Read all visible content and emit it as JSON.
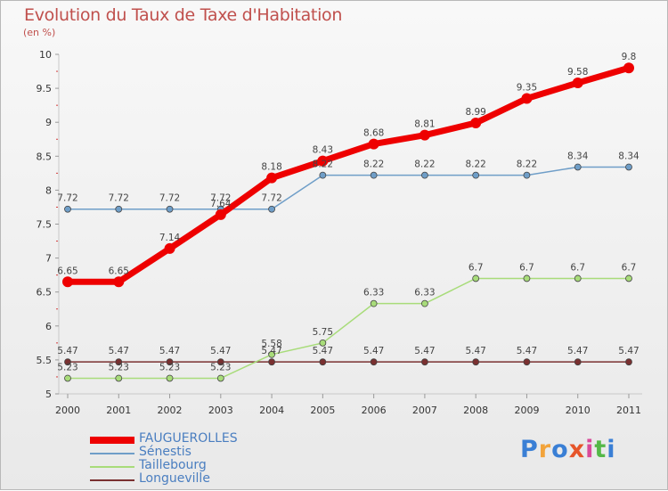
{
  "title": "Evolution du Taux de Taxe d'Habitation",
  "subtitle": "(en %)",
  "logo": {
    "text": "Proxiti",
    "colors": [
      "#3a7fd5",
      "#f2a33a",
      "#3a7fd5",
      "#e6552a",
      "#d94a9a",
      "#55b848",
      "#3a7fd5"
    ]
  },
  "chart_data": {
    "type": "line",
    "title": "Evolution du Taux de Taxe d'Habitation",
    "ylabel": "(en %)",
    "xlabel": "",
    "ylim": [
      5,
      10
    ],
    "yticks": [
      "5",
      "5.5",
      "6",
      "6.5",
      "7",
      "7.5",
      "8",
      "8.5",
      "9",
      "9.5",
      "10"
    ],
    "categories": [
      "2000",
      "2001",
      "2002",
      "2003",
      "2004",
      "2005",
      "2006",
      "2007",
      "2008",
      "2009",
      "2010",
      "2011"
    ],
    "series": [
      {
        "name": "FAUGUEROLLES",
        "color": "#ee0000",
        "values": [
          6.65,
          6.65,
          7.14,
          7.64,
          8.18,
          8.43,
          8.68,
          8.81,
          8.99,
          9.35,
          9.58,
          9.8
        ],
        "labels": [
          "6.65",
          "6.65",
          "7.14",
          "7.64",
          "8.18",
          "8.43",
          "8.68",
          "8.81",
          "8.99",
          "9.35",
          "9.58",
          "9.8"
        ]
      },
      {
        "name": "Sénestis",
        "color": "#6f9ec8",
        "values": [
          7.72,
          7.72,
          7.72,
          7.72,
          7.72,
          8.22,
          8.22,
          8.22,
          8.22,
          8.22,
          8.34,
          8.34
        ],
        "labels": [
          "7.72",
          "7.72",
          "7.72",
          "7.72",
          "7.72",
          "8.22",
          "8.22",
          "8.22",
          "8.22",
          "8.22",
          "8.34",
          "8.34"
        ]
      },
      {
        "name": "Taillebourg",
        "color": "#a8dc7a",
        "values": [
          5.23,
          5.23,
          5.23,
          5.23,
          5.58,
          5.75,
          6.33,
          6.33,
          6.7,
          6.7,
          6.7,
          6.7
        ],
        "labels": [
          "5.23",
          "5.23",
          "5.23",
          "5.23",
          "5.58",
          "5.75",
          "6.33",
          "6.33",
          "6.7",
          "6.7",
          "6.7",
          "6.7"
        ]
      },
      {
        "name": "Longueville",
        "color": "#7a3030",
        "values": [
          5.47,
          5.47,
          5.47,
          5.47,
          5.47,
          5.47,
          5.47,
          5.47,
          5.47,
          5.47,
          5.47,
          5.47
        ],
        "labels": [
          "5.47",
          "5.47",
          "5.47",
          "5.47",
          "5.47",
          "5.47",
          "5.47",
          "5.47",
          "5.47",
          "5.47",
          "5.47",
          "5.47"
        ]
      }
    ],
    "legend": "bottom-left"
  }
}
